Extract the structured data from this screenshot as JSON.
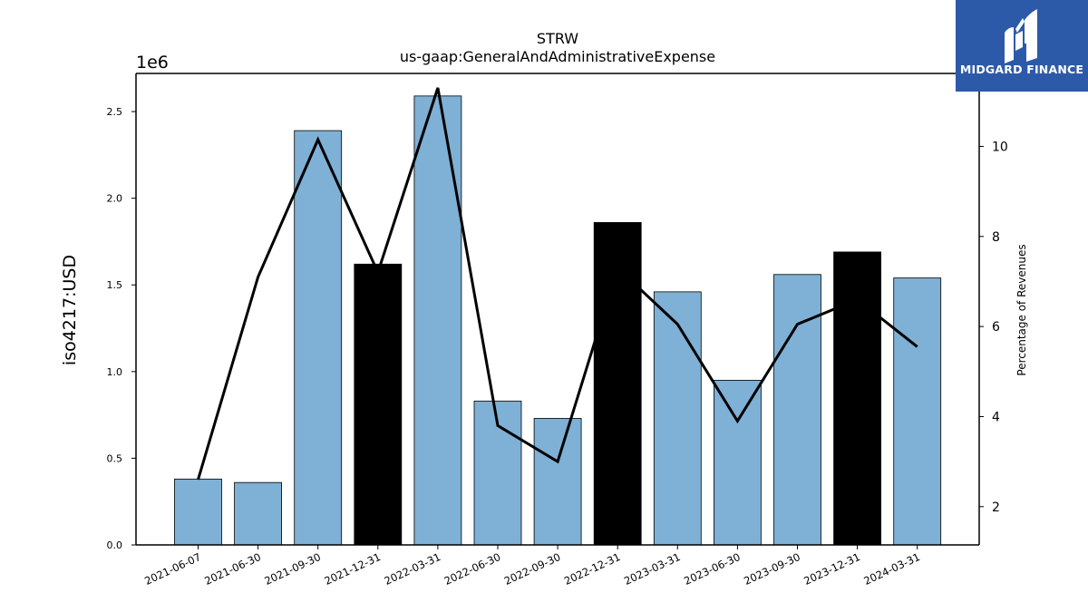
{
  "chart_data": {
    "type": "bar",
    "title": "STRW",
    "subtitle": "us-gaap:GeneralAndAdministrativeExpense",
    "ylabel": "iso4217:USD",
    "y_offset_label": "1e6",
    "y2label": "Percentage of Revenues",
    "categories": [
      "2021-06-07",
      "2021-06-30",
      "2021-09-30",
      "2021-12-31",
      "2022-03-31",
      "2022-06-30",
      "2022-09-30",
      "2022-12-31",
      "2023-03-31",
      "2023-06-30",
      "2023-09-30",
      "2023-12-31",
      "2024-03-31"
    ],
    "series": [
      {
        "type": "bar",
        "values": [
          0.38,
          0.36,
          2.39,
          1.62,
          2.59,
          0.83,
          0.73,
          1.86,
          1.46,
          0.95,
          1.56,
          1.69,
          1.54
        ],
        "highlight": [
          false,
          false,
          false,
          true,
          false,
          false,
          false,
          true,
          false,
          false,
          false,
          true,
          false
        ],
        "axis": "left"
      },
      {
        "type": "line",
        "values": [
          2.6,
          7.1,
          10.15,
          7.2,
          11.3,
          3.8,
          3.0,
          7.3,
          6.05,
          3.9,
          6.05,
          6.6,
          5.55
        ],
        "axis": "right"
      }
    ],
    "ylim": [
      0,
      2.72
    ],
    "y2lim": [
      1.15,
      11.62
    ],
    "yticks": [
      "0.0",
      "0.5",
      "1.0",
      "1.5",
      "2.0",
      "2.5"
    ],
    "y2ticks": [
      "2",
      "4",
      "6",
      "8",
      "10"
    ],
    "colors": {
      "bar": "#7fb0d5",
      "highlight_bar": "#000000",
      "line": "#000000"
    }
  },
  "logo": {
    "text": "MIDGARD FINANCE",
    "icon": "midgard-logo-icon",
    "background": "#2d5aa8"
  }
}
